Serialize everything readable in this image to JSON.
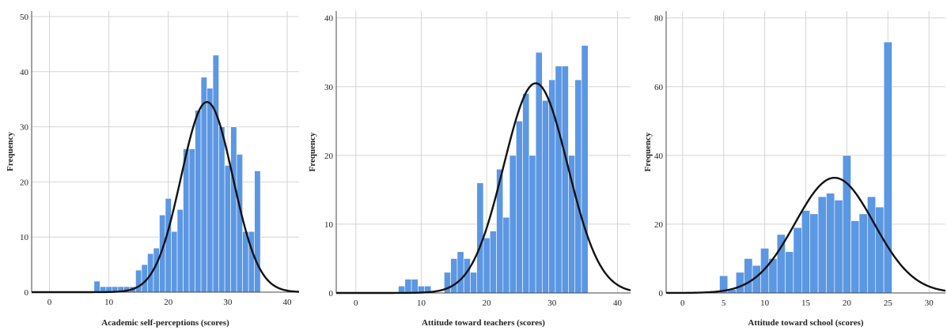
{
  "chart_data": [
    {
      "type": "bar",
      "subtype": "histogram-with-normal-curve",
      "xlabel": "Academic self-perceptions (scores)",
      "ylabel": "Frequency",
      "xlim": [
        -3,
        42
      ],
      "ylim": [
        0,
        51
      ],
      "xticks": [
        0,
        10,
        20,
        30,
        40
      ],
      "yticks": [
        0,
        10,
        20,
        30,
        40,
        50
      ],
      "bin_width": 1,
      "bins": [
        {
          "x": 8,
          "value": 2
        },
        {
          "x": 9,
          "value": 1
        },
        {
          "x": 10,
          "value": 1
        },
        {
          "x": 11,
          "value": 1
        },
        {
          "x": 12,
          "value": 1
        },
        {
          "x": 13,
          "value": 1
        },
        {
          "x": 14,
          "value": 1
        },
        {
          "x": 15,
          "value": 4
        },
        {
          "x": 16,
          "value": 5
        },
        {
          "x": 17,
          "value": 7
        },
        {
          "x": 18,
          "value": 8
        },
        {
          "x": 19,
          "value": 14
        },
        {
          "x": 20,
          "value": 17
        },
        {
          "x": 21,
          "value": 11
        },
        {
          "x": 22,
          "value": 15
        },
        {
          "x": 23,
          "value": 26
        },
        {
          "x": 24,
          "value": 26
        },
        {
          "x": 25,
          "value": 33
        },
        {
          "x": 26,
          "value": 39
        },
        {
          "x": 27,
          "value": 37
        },
        {
          "x": 28,
          "value": 43
        },
        {
          "x": 29,
          "value": 30
        },
        {
          "x": 30,
          "value": 23
        },
        {
          "x": 31,
          "value": 30
        },
        {
          "x": 32,
          "value": 25
        },
        {
          "x": 33,
          "value": 11
        },
        {
          "x": 34,
          "value": 11
        },
        {
          "x": 35,
          "value": 22
        }
      ],
      "normal_curve": {
        "mean": 26.5,
        "sd": 4.35,
        "peak": 34.5
      },
      "bar_color": "#5b97e3",
      "bar_edge_color": "#ffffff",
      "curve_color": "#111111",
      "grid": true
    },
    {
      "type": "bar",
      "subtype": "histogram-with-normal-curve",
      "xlabel": "Attitude toward teachers (scores)",
      "ylabel": "Frequency",
      "xlim": [
        -3,
        42
      ],
      "ylim": [
        0,
        41
      ],
      "xticks": [
        0,
        10,
        20,
        30,
        40
      ],
      "yticks": [
        0,
        10,
        20,
        30,
        40
      ],
      "bin_width": 1,
      "bins": [
        {
          "x": 7,
          "value": 1
        },
        {
          "x": 8,
          "value": 2
        },
        {
          "x": 9,
          "value": 2
        },
        {
          "x": 10,
          "value": 1
        },
        {
          "x": 11,
          "value": 1
        },
        {
          "x": 12,
          "value": 0
        },
        {
          "x": 13,
          "value": 0
        },
        {
          "x": 14,
          "value": 3
        },
        {
          "x": 15,
          "value": 5
        },
        {
          "x": 16,
          "value": 6
        },
        {
          "x": 17,
          "value": 5
        },
        {
          "x": 18,
          "value": 3
        },
        {
          "x": 19,
          "value": 16
        },
        {
          "x": 20,
          "value": 8
        },
        {
          "x": 21,
          "value": 9
        },
        {
          "x": 22,
          "value": 18
        },
        {
          "x": 23,
          "value": 11
        },
        {
          "x": 24,
          "value": 20
        },
        {
          "x": 25,
          "value": 25
        },
        {
          "x": 26,
          "value": 29
        },
        {
          "x": 27,
          "value": 20
        },
        {
          "x": 28,
          "value": 35
        },
        {
          "x": 29,
          "value": 28
        },
        {
          "x": 30,
          "value": 31
        },
        {
          "x": 31,
          "value": 33
        },
        {
          "x": 32,
          "value": 33
        },
        {
          "x": 33,
          "value": 20
        },
        {
          "x": 34,
          "value": 31
        },
        {
          "x": 35,
          "value": 36
        }
      ],
      "normal_curve": {
        "mean": 27.5,
        "sd": 4.9,
        "peak": 30.5
      },
      "bar_color": "#5b97e3",
      "bar_edge_color": "#ffffff",
      "curve_color": "#111111",
      "grid": true
    },
    {
      "type": "bar",
      "subtype": "histogram-with-normal-curve",
      "xlabel": "Attitude toward school (scores)",
      "ylabel": "Frequency",
      "xlim": [
        -2,
        32
      ],
      "ylim": [
        0,
        82
      ],
      "xticks": [
        0,
        5,
        10,
        15,
        20,
        25,
        30
      ],
      "yticks": [
        0,
        20,
        40,
        60,
        80
      ],
      "bin_width": 1,
      "bins": [
        {
          "x": 5,
          "value": 5
        },
        {
          "x": 6,
          "value": 1
        },
        {
          "x": 7,
          "value": 6
        },
        {
          "x": 8,
          "value": 10
        },
        {
          "x": 9,
          "value": 8
        },
        {
          "x": 10,
          "value": 13
        },
        {
          "x": 11,
          "value": 10
        },
        {
          "x": 12,
          "value": 17
        },
        {
          "x": 13,
          "value": 12
        },
        {
          "x": 14,
          "value": 19
        },
        {
          "x": 15,
          "value": 24
        },
        {
          "x": 16,
          "value": 23
        },
        {
          "x": 17,
          "value": 28
        },
        {
          "x": 18,
          "value": 29
        },
        {
          "x": 19,
          "value": 27
        },
        {
          "x": 20,
          "value": 40
        },
        {
          "x": 21,
          "value": 21
        },
        {
          "x": 22,
          "value": 23
        },
        {
          "x": 23,
          "value": 28
        },
        {
          "x": 24,
          "value": 25
        },
        {
          "x": 25,
          "value": 73
        }
      ],
      "normal_curve": {
        "mean": 18.5,
        "sd": 4.8,
        "peak": 33.5
      },
      "bar_color": "#5b97e3",
      "bar_edge_color": "#ffffff",
      "curve_color": "#111111",
      "grid": true
    }
  ]
}
